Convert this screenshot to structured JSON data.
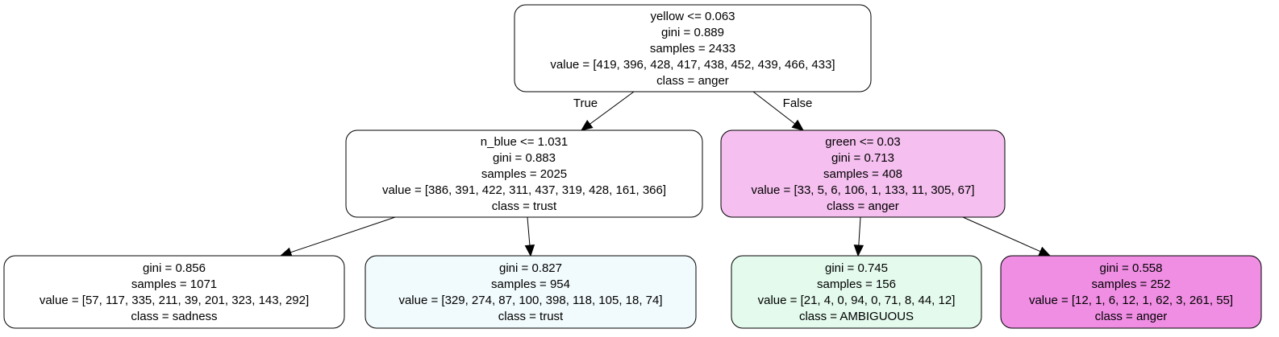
{
  "nodes": [
    {
      "id": "n0",
      "lines": [
        "yellow <= 0.063",
        "gini = 0.889",
        "samples = 2433",
        "value = [419, 396, 428, 417, 438, 452, 439, 466, 433]",
        "class = anger"
      ],
      "fill": "#ffffff"
    },
    {
      "id": "n1",
      "lines": [
        "n_blue <= 1.031",
        "gini = 0.883",
        "samples = 2025",
        "value = [386, 391, 422, 311, 437, 319, 428, 161, 366]",
        "class = trust"
      ],
      "fill": "#ffffff"
    },
    {
      "id": "n2",
      "lines": [
        "green <= 0.03",
        "gini = 0.713",
        "samples = 408",
        "value = [33, 5, 6, 106, 1, 133, 11, 305, 67]",
        "class = anger"
      ],
      "fill": "#f5bfef"
    },
    {
      "id": "n3",
      "lines": [
        "gini = 0.856",
        "samples = 1071",
        "value = [57, 117, 335, 211, 39, 201, 323, 143, 292]",
        "class = sadness"
      ],
      "fill": "#ffffff"
    },
    {
      "id": "n4",
      "lines": [
        "gini = 0.827",
        "samples = 954",
        "value = [329, 274, 87, 100, 398, 118, 105, 18, 74]",
        "class = trust"
      ],
      "fill": "#f1fafc"
    },
    {
      "id": "n5",
      "lines": [
        "gini = 0.745",
        "samples = 156",
        "value = [21, 4, 0, 94, 0, 71, 8, 44, 12]",
        "class = AMBIGUOUS"
      ],
      "fill": "#e3faed"
    },
    {
      "id": "n6",
      "lines": [
        "gini = 0.558",
        "samples = 252",
        "value = [12, 1, 6, 12, 1, 62, 3, 261, 55]",
        "class = anger"
      ],
      "fill": "#f08ee4"
    }
  ],
  "edges": [
    {
      "from": "n0",
      "to": "n1",
      "label": "True"
    },
    {
      "from": "n0",
      "to": "n2",
      "label": "False"
    },
    {
      "from": "n1",
      "to": "n3",
      "label": ""
    },
    {
      "from": "n1",
      "to": "n4",
      "label": ""
    },
    {
      "from": "n2",
      "to": "n5",
      "label": ""
    },
    {
      "from": "n2",
      "to": "n6",
      "label": ""
    }
  ]
}
